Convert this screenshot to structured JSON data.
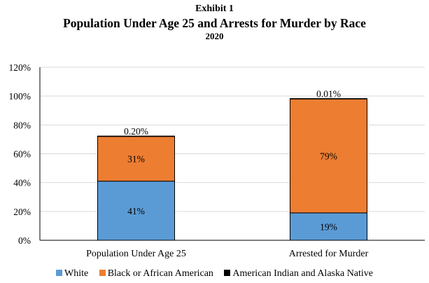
{
  "chart_data": {
    "type": "bar",
    "stacked": true,
    "exhibit": "Exhibit 1",
    "title": "Population Under Age 25 and Arrests for Murder by Race",
    "subtitle": "2020",
    "categories": [
      "Population Under Age 25",
      "Arrested for Murder"
    ],
    "series": [
      {
        "name": "White",
        "color": "#5b9bd5",
        "values": [
          41,
          19
        ],
        "labels": [
          "41%",
          "19%"
        ]
      },
      {
        "name": "Black or African American",
        "color": "#ed7d31",
        "values": [
          31,
          79
        ],
        "labels": [
          "31%",
          "79%"
        ]
      },
      {
        "name": "American Indian and Alaska Native",
        "color": "#000000",
        "values": [
          0.2,
          0.01
        ],
        "labels": [
          "0.20%",
          "0.01%"
        ]
      }
    ],
    "yticks": [
      "0%",
      "20%",
      "40%",
      "60%",
      "80%",
      "100%",
      "120%"
    ],
    "ylim": [
      0,
      120
    ],
    "xlabel": "",
    "ylabel": "",
    "legend_position": "bottom"
  }
}
